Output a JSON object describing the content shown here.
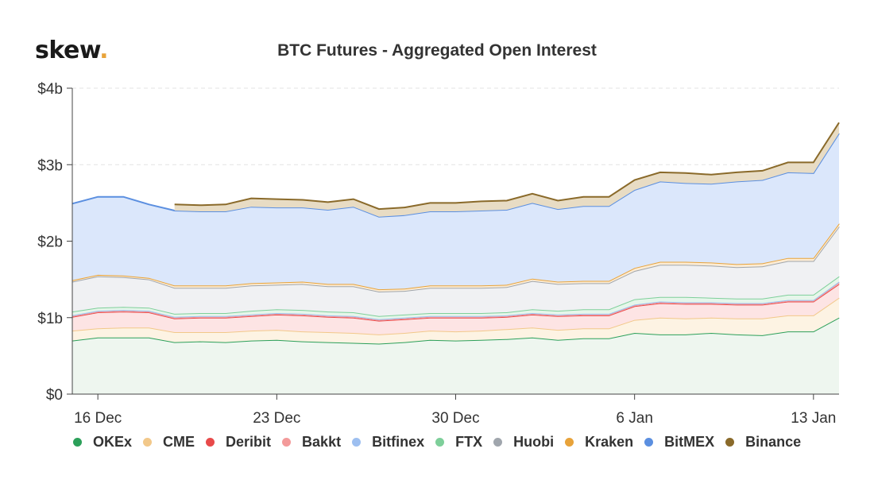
{
  "brand": {
    "name": "skew",
    "dot": "."
  },
  "chart_data": {
    "type": "area",
    "stacked": true,
    "title": "BTC Futures - Aggregated Open Interest",
    "yticks": [
      "$0",
      "$1b",
      "$2b",
      "$3b",
      "$4b"
    ],
    "ylim": [
      0,
      4
    ],
    "ytick_values": [
      0,
      1,
      2,
      3,
      4
    ],
    "xticks": [
      {
        "label": "16 Dec",
        "day": 1
      },
      {
        "label": "23 Dec",
        "day": 8
      },
      {
        "label": "30 Dec",
        "day": 15
      },
      {
        "label": "6 Jan",
        "day": 22
      },
      {
        "label": "13 Jan",
        "day": 29
      }
    ],
    "x": [
      "15 Dec",
      "16 Dec",
      "17 Dec",
      "18 Dec",
      "19 Dec",
      "20 Dec",
      "21 Dec",
      "22 Dec",
      "23 Dec",
      "24 Dec",
      "25 Dec",
      "26 Dec",
      "27 Dec",
      "28 Dec",
      "29 Dec",
      "30 Dec",
      "31 Dec",
      "1 Jan",
      "2 Jan",
      "3 Jan",
      "4 Jan",
      "5 Jan",
      "6 Jan",
      "7 Jan",
      "8 Jan",
      "9 Jan",
      "10 Jan",
      "11 Jan",
      "12 Jan",
      "13 Jan",
      "14 Jan"
    ],
    "grid": "horizontal-dashed",
    "legend_position": "bottom",
    "series": [
      {
        "name": "OKEx",
        "color": "#2ca05a",
        "fill": "#eef6ef",
        "values": [
          0.7,
          0.74,
          0.74,
          0.74,
          0.68,
          0.69,
          0.68,
          0.7,
          0.71,
          0.69,
          0.68,
          0.67,
          0.66,
          0.68,
          0.71,
          0.7,
          0.71,
          0.72,
          0.74,
          0.71,
          0.73,
          0.73,
          0.8,
          0.78,
          0.78,
          0.8,
          0.78,
          0.77,
          0.82,
          0.82,
          1.0
        ]
      },
      {
        "name": "CME",
        "color": "#f2c88a",
        "fill": "#fdf3e3",
        "values": [
          0.13,
          0.12,
          0.13,
          0.13,
          0.13,
          0.12,
          0.13,
          0.13,
          0.13,
          0.13,
          0.13,
          0.13,
          0.12,
          0.12,
          0.12,
          0.12,
          0.12,
          0.13,
          0.13,
          0.13,
          0.13,
          0.13,
          0.17,
          0.22,
          0.21,
          0.2,
          0.21,
          0.22,
          0.21,
          0.21,
          0.26
        ]
      },
      {
        "name": "Deribit",
        "color": "#e84a4a",
        "fill": "#fde4e4",
        "values": [
          0.18,
          0.21,
          0.21,
          0.2,
          0.18,
          0.19,
          0.19,
          0.19,
          0.2,
          0.21,
          0.2,
          0.2,
          0.18,
          0.18,
          0.17,
          0.18,
          0.17,
          0.16,
          0.17,
          0.18,
          0.17,
          0.17,
          0.18,
          0.19,
          0.19,
          0.18,
          0.18,
          0.18,
          0.18,
          0.18,
          0.18
        ]
      },
      {
        "name": "Bakkt",
        "color": "#f39a9a",
        "fill": "#fbe3e3",
        "values": [
          0.01,
          0.01,
          0.01,
          0.01,
          0.01,
          0.01,
          0.01,
          0.01,
          0.01,
          0.01,
          0.01,
          0.01,
          0.01,
          0.01,
          0.01,
          0.01,
          0.01,
          0.01,
          0.01,
          0.01,
          0.01,
          0.01,
          0.01,
          0.01,
          0.01,
          0.01,
          0.01,
          0.01,
          0.01,
          0.01,
          0.02
        ]
      },
      {
        "name": "Bitfinex",
        "color": "#9dbff0",
        "fill": "#e6efff",
        "values": [
          0.01,
          0.01,
          0.01,
          0.01,
          0.01,
          0.01,
          0.01,
          0.01,
          0.01,
          0.01,
          0.01,
          0.01,
          0.01,
          0.01,
          0.01,
          0.01,
          0.01,
          0.01,
          0.01,
          0.01,
          0.01,
          0.01,
          0.01,
          0.01,
          0.01,
          0.01,
          0.01,
          0.01,
          0.01,
          0.01,
          0.01
        ]
      },
      {
        "name": "FTX",
        "color": "#7ecf9a",
        "fill": "#e6f6ea",
        "values": [
          0.05,
          0.04,
          0.04,
          0.04,
          0.04,
          0.04,
          0.04,
          0.05,
          0.05,
          0.05,
          0.05,
          0.05,
          0.04,
          0.04,
          0.04,
          0.04,
          0.04,
          0.04,
          0.05,
          0.05,
          0.06,
          0.06,
          0.07,
          0.06,
          0.07,
          0.06,
          0.06,
          0.06,
          0.07,
          0.07,
          0.07
        ]
      },
      {
        "name": "Huobi",
        "color": "#a0a6ad",
        "fill": "#f0f1f3",
        "values": [
          0.39,
          0.41,
          0.39,
          0.37,
          0.34,
          0.33,
          0.33,
          0.33,
          0.32,
          0.34,
          0.33,
          0.34,
          0.32,
          0.31,
          0.33,
          0.33,
          0.33,
          0.33,
          0.37,
          0.35,
          0.34,
          0.34,
          0.37,
          0.42,
          0.42,
          0.42,
          0.41,
          0.42,
          0.44,
          0.44,
          0.65
        ]
      },
      {
        "name": "Kraken",
        "color": "#e8a33a",
        "fill": "#fcecd4",
        "values": [
          0.02,
          0.02,
          0.02,
          0.02,
          0.03,
          0.03,
          0.03,
          0.03,
          0.03,
          0.03,
          0.03,
          0.03,
          0.03,
          0.03,
          0.03,
          0.03,
          0.03,
          0.03,
          0.03,
          0.03,
          0.03,
          0.03,
          0.04,
          0.04,
          0.04,
          0.04,
          0.04,
          0.04,
          0.04,
          0.04,
          0.04
        ]
      },
      {
        "name": "BitMEX",
        "color": "#5b8fe0",
        "fill": "#dbe7fb",
        "values": [
          1.0,
          1.02,
          1.03,
          0.96,
          0.98,
          0.97,
          0.97,
          1.0,
          0.98,
          0.97,
          0.97,
          1.01,
          0.95,
          0.96,
          0.97,
          0.97,
          0.98,
          0.98,
          0.99,
          0.95,
          0.98,
          0.98,
          1.02,
          1.05,
          1.03,
          1.03,
          1.08,
          1.09,
          1.12,
          1.11,
          1.18
        ]
      },
      {
        "name": "Binance",
        "color": "#8a6a2a",
        "fill": "#e8dcc4",
        "values": [
          null,
          null,
          null,
          null,
          0.08,
          0.08,
          0.09,
          0.11,
          0.11,
          0.1,
          0.1,
          0.1,
          0.1,
          0.1,
          0.11,
          0.11,
          0.12,
          0.12,
          0.12,
          0.11,
          0.12,
          0.12,
          0.13,
          0.12,
          0.13,
          0.12,
          0.12,
          0.12,
          0.13,
          0.14,
          0.14
        ]
      }
    ]
  }
}
